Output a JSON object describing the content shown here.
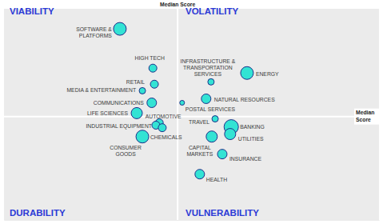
{
  "chart_data": {
    "type": "scatter",
    "point_labels": [
      "SOFTWARE &\nPLATFORMS",
      "HIGH TECH",
      "RETAIL",
      "MEDIA & ENTERTAINMENT",
      "COMMUNICATIONS",
      "LIFE SCIENCES",
      "AUTOMOTIVE",
      "INDUSTRIAL EQUIPMENT",
      "CHEMICALS",
      "CONSUMER\nGOODS",
      "ENERGY",
      "INFRASTRUCTURE &\nTRANSPORTATION\nSERVICES",
      "NATURAL RESOURCES",
      "POSTAL SERVICES",
      "TRAVEL",
      "BANKING",
      "UTILITIES",
      "CAPITAL\nMARKETS",
      "INSURANCE",
      "HEALTH"
    ],
    "x": [
      30.9,
      39.7,
      40.1,
      36.9,
      39.4,
      35.4,
      41.4,
      40.5,
      42.2,
      36.9,
      64.8,
      55.2,
      53.9,
      47.5,
      56.3,
      60.6,
      60.3,
      55.4,
      58.2,
      52.2
    ],
    "values": [
      90.5,
      71.9,
      64.3,
      61.2,
      55.5,
      50.6,
      46.0,
      44.9,
      43.7,
      39.5,
      69.6,
      65.4,
      57.4,
      55.5,
      47.9,
      44.1,
      40.7,
      39.5,
      31.2,
      21.7
    ],
    "sizes": [
      64,
      25,
      25,
      16,
      36,
      49,
      25,
      25,
      25,
      64,
      64,
      16,
      36,
      9,
      16,
      81,
      49,
      49,
      36,
      36
    ],
    "color": "#33e3d4",
    "xlim": [
      0,
      100
    ],
    "ylim": [
      0,
      100
    ],
    "tick_labels": false,
    "grid": false,
    "reference_lines": [
      {
        "axis": "x",
        "value": 46.3,
        "label": "Median Score"
      },
      {
        "axis": "y",
        "value": 49.0,
        "label": "Median Score"
      }
    ],
    "annotations": [
      "VIABILITY",
      "VOLATILITY",
      "DURABILITY",
      "VULNERABILITY"
    ]
  }
}
